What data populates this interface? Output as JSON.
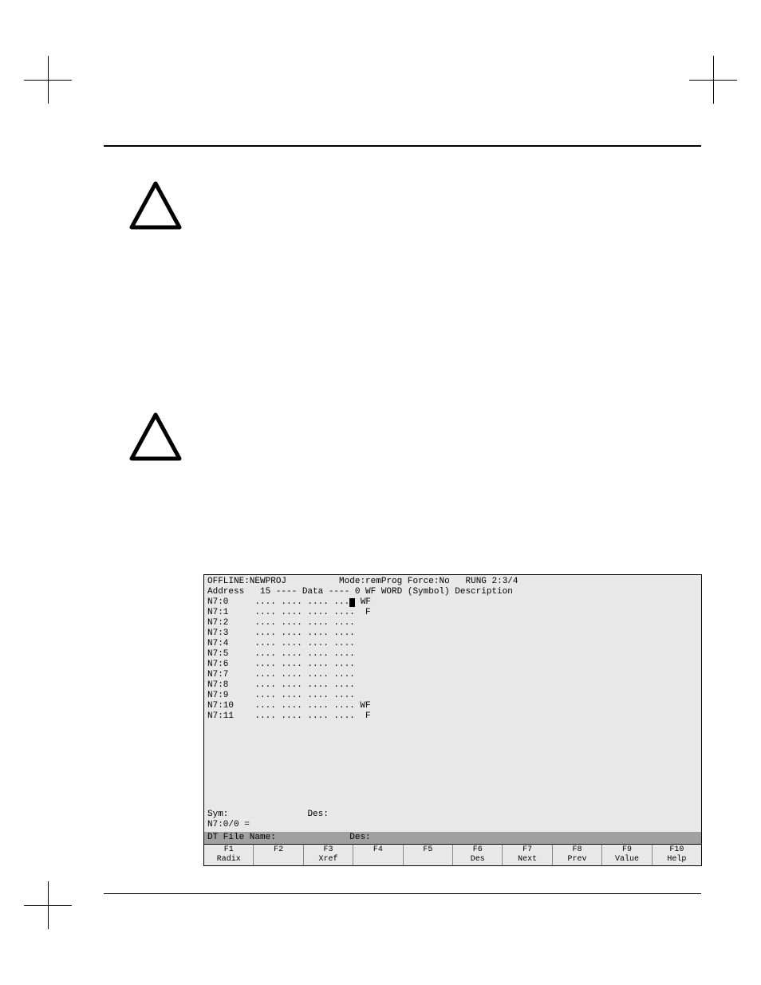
{
  "terminal": {
    "status_offline": "OFFLINE:NEWPROJ",
    "status_mode": "Mode:remProg",
    "status_force": "Force:No",
    "status_rung": "RUNG 2:3/4",
    "header": "Address   15 ---- Data ---- 0 WF WORD (Symbol) Description",
    "rows": [
      {
        "addr": "N7:0",
        "data": ".... .... .... ...",
        "cursor": true,
        "suffix": " WF"
      },
      {
        "addr": "N7:1",
        "data": ".... .... .... ....",
        "cursor": false,
        "suffix": "  F"
      },
      {
        "addr": "N7:2",
        "data": ".... .... .... ....",
        "cursor": false,
        "suffix": ""
      },
      {
        "addr": "N7:3",
        "data": ".... .... .... ....",
        "cursor": false,
        "suffix": ""
      },
      {
        "addr": "N7:4",
        "data": ".... .... .... ....",
        "cursor": false,
        "suffix": ""
      },
      {
        "addr": "N7:5",
        "data": ".... .... .... ....",
        "cursor": false,
        "suffix": ""
      },
      {
        "addr": "N7:6",
        "data": ".... .... .... ....",
        "cursor": false,
        "suffix": ""
      },
      {
        "addr": "N7:7",
        "data": ".... .... .... ....",
        "cursor": false,
        "suffix": ""
      },
      {
        "addr": "N7:8",
        "data": ".... .... .... ....",
        "cursor": false,
        "suffix": ""
      },
      {
        "addr": "N7:9",
        "data": ".... .... .... ....",
        "cursor": false,
        "suffix": ""
      },
      {
        "addr": "N7:10",
        "data": ".... .... .... ....",
        "cursor": false,
        "suffix": " WF"
      },
      {
        "addr": "N7:11",
        "data": ".... .... .... ....",
        "cursor": false,
        "suffix": "  F"
      }
    ],
    "sym_label": "Sym:",
    "des_label": "Des:",
    "cursor_addr": "N7:0/0 =",
    "file_bar_name": "DT File Name:",
    "file_bar_des": "Des:",
    "fkeys": [
      {
        "num": "F1",
        "label": "Radix"
      },
      {
        "num": "F2",
        "label": ""
      },
      {
        "num": "F3",
        "label": "Xref"
      },
      {
        "num": "F4",
        "label": ""
      },
      {
        "num": "F5",
        "label": ""
      },
      {
        "num": "F6",
        "label": "Des"
      },
      {
        "num": "F7",
        "label": "Next"
      },
      {
        "num": "F8",
        "label": "Prev"
      },
      {
        "num": "F9",
        "label": "Value"
      },
      {
        "num": "F10",
        "label": "Help"
      }
    ]
  },
  "colors": {
    "terminal_bg": "#e8e8e8",
    "bar_bg": "#a0a0a0",
    "text": "#000000"
  }
}
